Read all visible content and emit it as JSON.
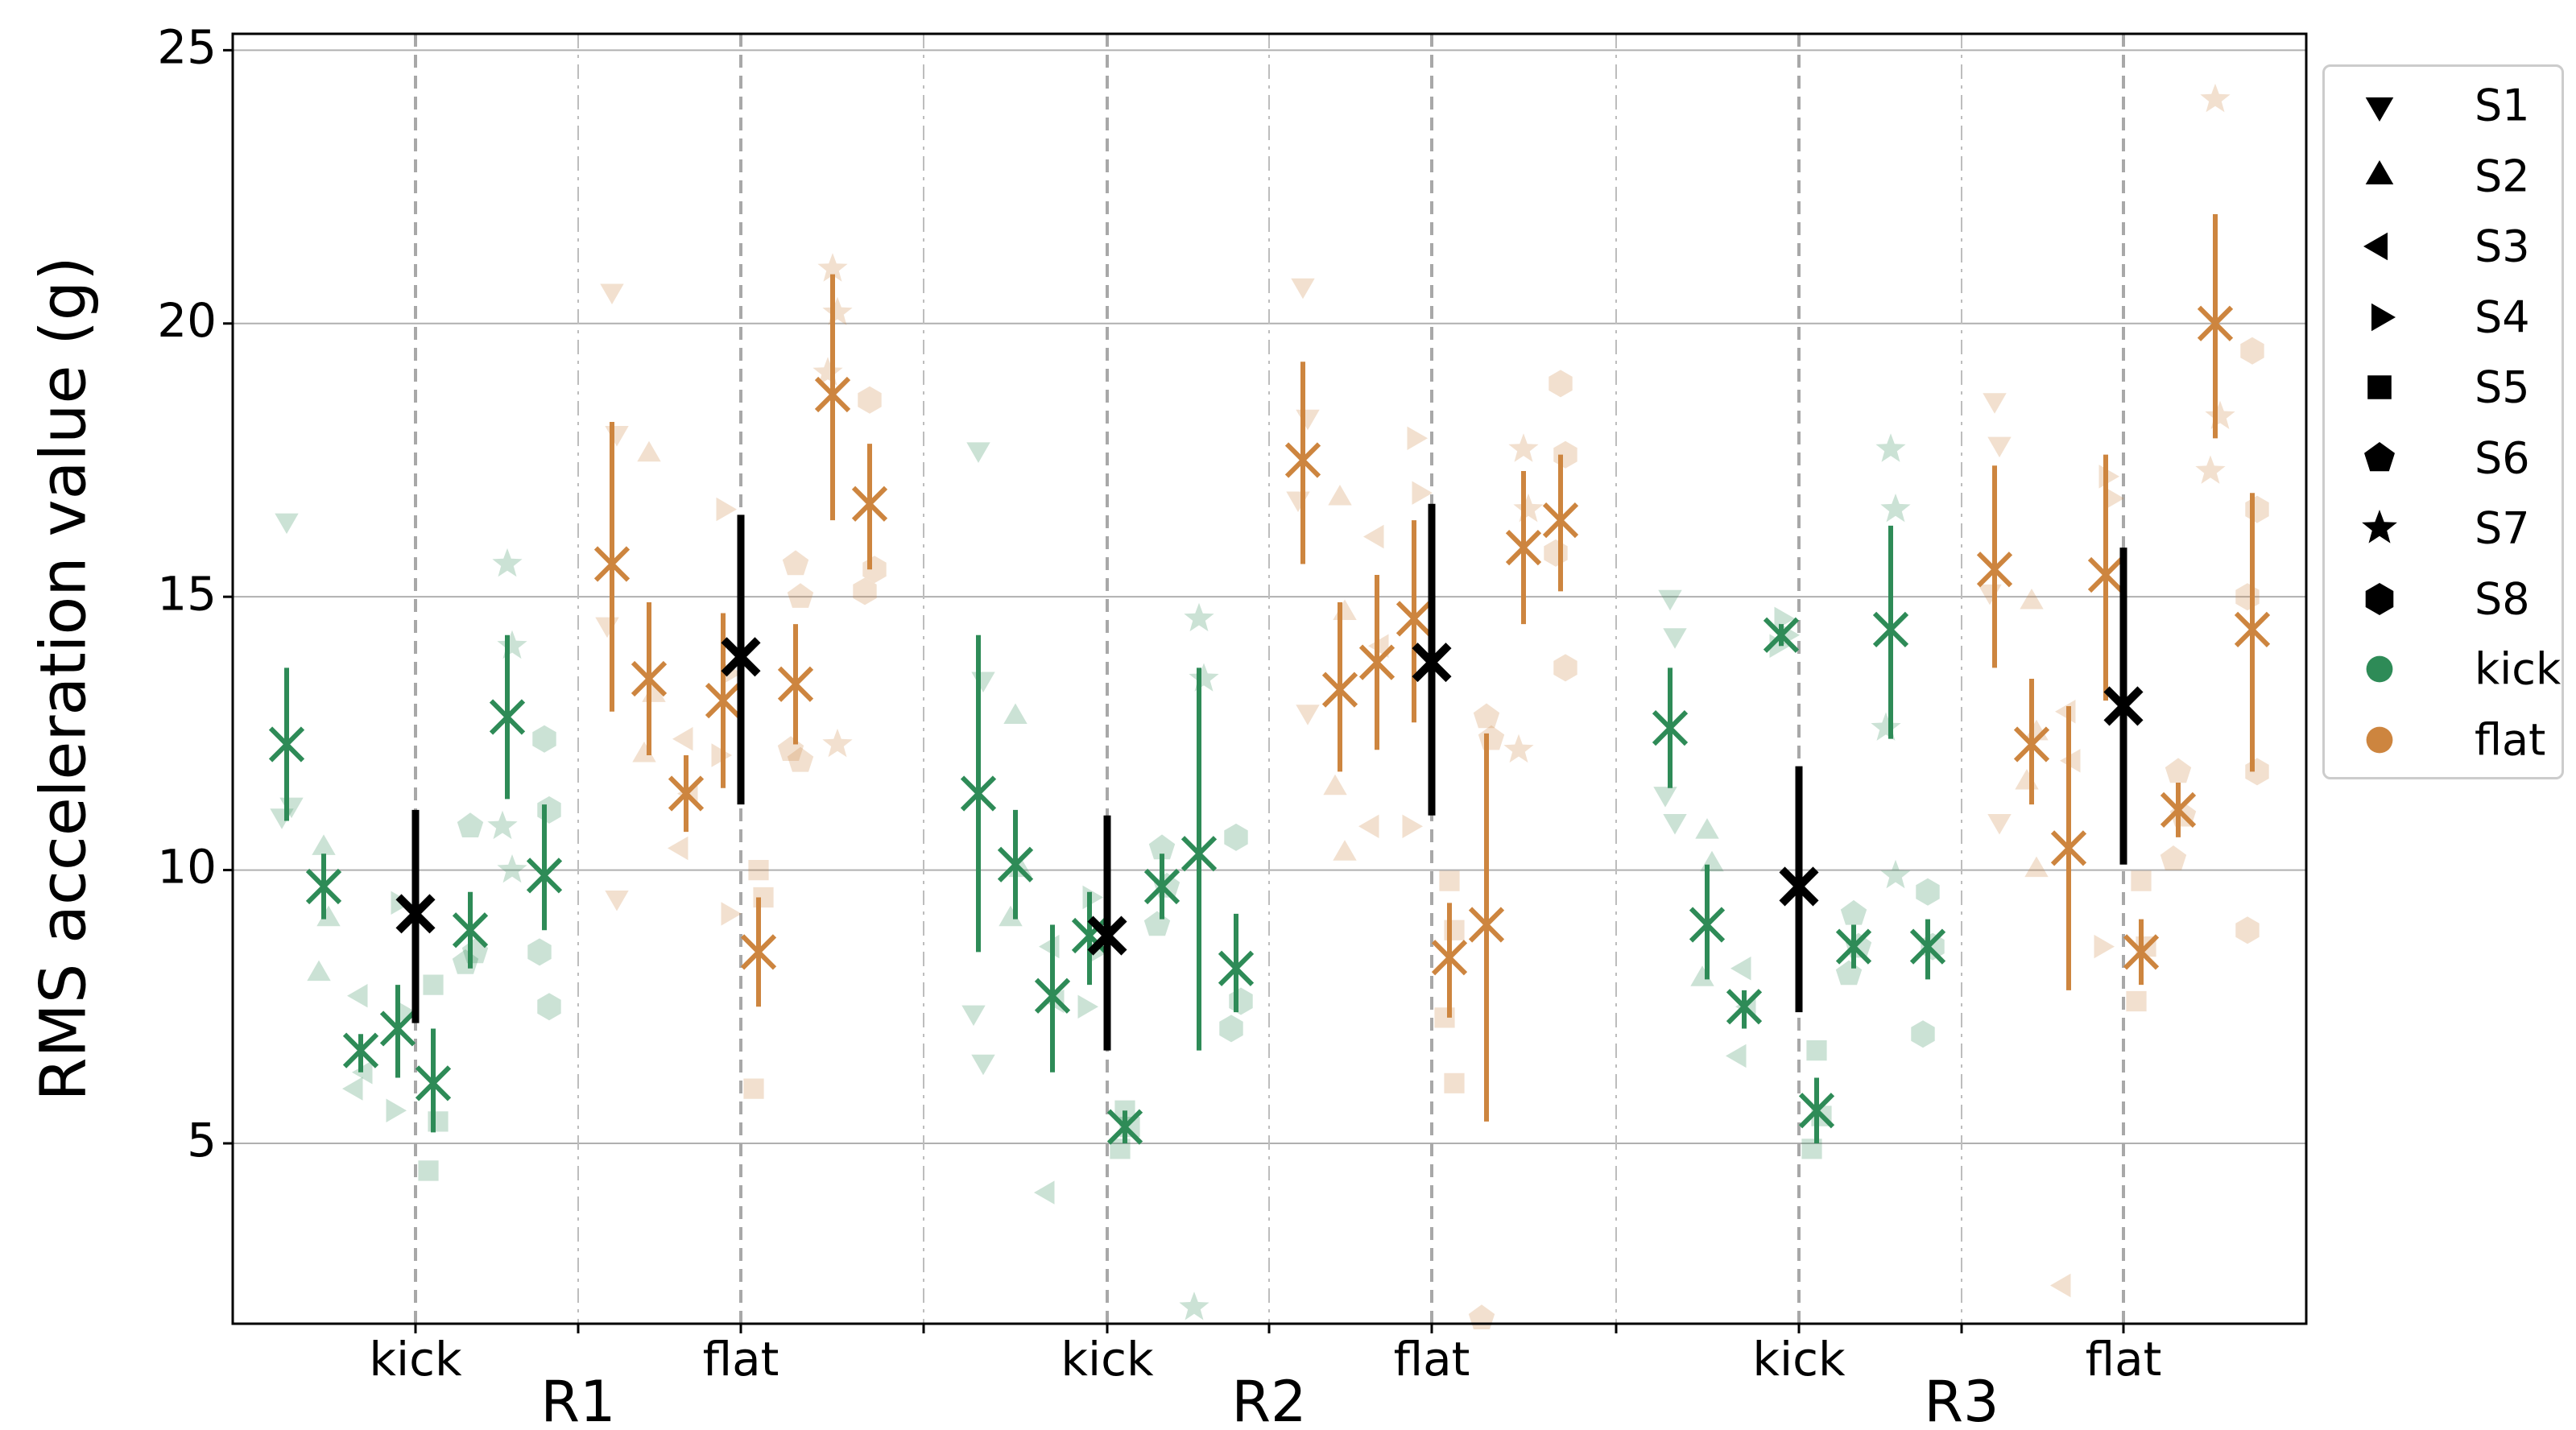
{
  "chart_data": {
    "type": "scatter",
    "title": "",
    "xlabel": "",
    "ylabel": "RMS acceleration value (g)",
    "ylim": [
      1.7,
      25.3
    ],
    "yticks": [
      5,
      10,
      15,
      20,
      25
    ],
    "grid": "horizontal",
    "legend_position": "right",
    "groups": [
      "R1",
      "R2",
      "R3"
    ],
    "conditions": [
      "kick",
      "flat"
    ],
    "colors": {
      "kick": "#2e8b57",
      "flat": "#cd853f",
      "overall": "#000000"
    },
    "subjects": [
      "S1",
      "S2",
      "S3",
      "S4",
      "S5",
      "S6",
      "S7",
      "S8"
    ],
    "markers": {
      "S1": "triangle-down",
      "S2": "triangle-up",
      "S3": "triangle-left",
      "S4": "triangle-right",
      "S5": "square",
      "S6": "pentagon",
      "S7": "star",
      "S8": "hexagon"
    },
    "series": [
      {
        "group": "R1",
        "condition": "kick",
        "overall": {
          "mean": 9.2,
          "low": 7.2,
          "high": 11.1
        },
        "subjects": [
          {
            "name": "S1",
            "mean": 12.3,
            "low": 10.9,
            "high": 13.7,
            "points": [
              16.4,
              11.2,
              11.0
            ]
          },
          {
            "name": "S2",
            "mean": 9.7,
            "low": 9.1,
            "high": 10.3,
            "points": [
              10.4,
              9.1,
              8.1
            ]
          },
          {
            "name": "S3",
            "mean": 6.7,
            "low": 6.3,
            "high": 7.0,
            "points": [
              7.7,
              6.3,
              6.0
            ]
          },
          {
            "name": "S4",
            "mean": 7.1,
            "low": 6.2,
            "high": 7.9,
            "points": [
              9.4,
              7.4,
              5.6
            ]
          },
          {
            "name": "S5",
            "mean": 6.1,
            "low": 5.2,
            "high": 7.1,
            "points": [
              7.9,
              5.4,
              4.5
            ]
          },
          {
            "name": "S6",
            "mean": 8.9,
            "low": 8.2,
            "high": 9.6,
            "points": [
              10.8,
              8.5,
              8.3
            ]
          },
          {
            "name": "S7",
            "mean": 12.8,
            "low": 11.3,
            "high": 14.3,
            "points": [
              15.6,
              14.1,
              10.8,
              10.0
            ]
          },
          {
            "name": "S8",
            "mean": 9.9,
            "low": 8.9,
            "high": 11.2,
            "points": [
              12.4,
              11.1,
              8.5,
              7.5
            ]
          }
        ]
      },
      {
        "group": "R1",
        "condition": "flat",
        "overall": {
          "mean": 13.9,
          "low": 11.2,
          "high": 16.5
        },
        "subjects": [
          {
            "name": "S1",
            "mean": 15.6,
            "low": 12.9,
            "high": 18.2,
            "points": [
              20.6,
              18.0,
              14.5,
              9.5
            ]
          },
          {
            "name": "S2",
            "mean": 13.5,
            "low": 12.1,
            "high": 14.9,
            "points": [
              17.6,
              13.2,
              12.1
            ]
          },
          {
            "name": "S3",
            "mean": 11.4,
            "low": 10.7,
            "high": 12.1,
            "points": [
              12.4,
              11.4,
              10.4
            ]
          },
          {
            "name": "S4",
            "mean": 13.1,
            "low": 11.5,
            "high": 14.7,
            "points": [
              16.6,
              13.6,
              12.1,
              9.2
            ]
          },
          {
            "name": "S5",
            "mean": 8.5,
            "low": 7.5,
            "high": 9.5,
            "points": [
              10.0,
              9.5,
              6.0
            ]
          },
          {
            "name": "S6",
            "mean": 13.4,
            "low": 12.3,
            "high": 14.5,
            "points": [
              15.6,
              15.0,
              12.2,
              12.0
            ]
          },
          {
            "name": "S7",
            "mean": 18.7,
            "low": 16.4,
            "high": 20.9,
            "points": [
              21.0,
              20.2,
              19.1,
              12.3
            ]
          },
          {
            "name": "S8",
            "mean": 16.7,
            "low": 15.5,
            "high": 17.8,
            "points": [
              18.6,
              15.5,
              15.1
            ]
          }
        ]
      },
      {
        "group": "R2",
        "condition": "kick",
        "overall": {
          "mean": 8.8,
          "low": 6.7,
          "high": 11.0
        },
        "subjects": [
          {
            "name": "S1",
            "mean": 11.4,
            "low": 8.5,
            "high": 14.3,
            "points": [
              17.7,
              13.5,
              7.4,
              6.5
            ]
          },
          {
            "name": "S2",
            "mean": 10.1,
            "low": 9.1,
            "high": 11.1,
            "points": [
              12.8,
              10.0,
              9.1
            ]
          },
          {
            "name": "S3",
            "mean": 7.7,
            "low": 6.3,
            "high": 9.0,
            "points": [
              8.6,
              7.6,
              4.1
            ]
          },
          {
            "name": "S4",
            "mean": 8.8,
            "low": 7.9,
            "high": 9.6,
            "points": [
              9.5,
              8.5,
              7.5
            ]
          },
          {
            "name": "S5",
            "mean": 5.3,
            "low": 5.0,
            "high": 5.6,
            "points": [
              5.6,
              5.3,
              4.9
            ]
          },
          {
            "name": "S6",
            "mean": 9.7,
            "low": 9.1,
            "high": 10.3,
            "points": [
              10.4,
              9.7,
              9.0
            ]
          },
          {
            "name": "S7",
            "mean": 10.3,
            "low": 6.7,
            "high": 13.7,
            "points": [
              14.6,
              13.5,
              2.0
            ]
          },
          {
            "name": "S8",
            "mean": 8.2,
            "low": 7.4,
            "high": 9.2,
            "points": [
              10.6,
              7.6,
              7.1
            ]
          }
        ]
      },
      {
        "group": "R2",
        "condition": "flat",
        "overall": {
          "mean": 13.8,
          "low": 11.0,
          "high": 16.7
        },
        "subjects": [
          {
            "name": "S1",
            "mean": 17.5,
            "low": 15.6,
            "high": 19.3,
            "points": [
              20.7,
              18.3,
              16.8,
              12.9
            ]
          },
          {
            "name": "S2",
            "mean": 13.3,
            "low": 11.8,
            "high": 14.9,
            "points": [
              16.8,
              14.7,
              11.5,
              10.3
            ]
          },
          {
            "name": "S3",
            "mean": 13.8,
            "low": 12.2,
            "high": 15.4,
            "points": [
              16.1,
              14.1,
              10.8
            ]
          },
          {
            "name": "S4",
            "mean": 14.6,
            "low": 12.7,
            "high": 16.4,
            "points": [
              17.9,
              16.9,
              10.8
            ]
          },
          {
            "name": "S5",
            "mean": 8.4,
            "low": 7.3,
            "high": 9.4,
            "points": [
              9.8,
              8.9,
              7.3,
              6.1
            ]
          },
          {
            "name": "S6",
            "mean": 9.0,
            "low": 5.4,
            "high": 12.5,
            "points": [
              12.8,
              12.4,
              1.8
            ]
          },
          {
            "name": "S7",
            "mean": 15.9,
            "low": 14.5,
            "high": 17.3,
            "points": [
              17.7,
              16.6,
              12.2
            ]
          },
          {
            "name": "S8",
            "mean": 16.4,
            "low": 15.1,
            "high": 17.6,
            "points": [
              18.9,
              17.6,
              15.8,
              13.7
            ]
          }
        ]
      },
      {
        "group": "R3",
        "condition": "kick",
        "overall": {
          "mean": 9.7,
          "low": 7.4,
          "high": 11.9
        },
        "subjects": [
          {
            "name": "S1",
            "mean": 12.6,
            "low": 11.5,
            "high": 13.7,
            "points": [
              15.0,
              14.3,
              11.4,
              10.9
            ]
          },
          {
            "name": "S2",
            "mean": 9.0,
            "low": 8.0,
            "high": 10.1,
            "points": [
              10.7,
              10.1,
              8.0
            ]
          },
          {
            "name": "S3",
            "mean": 7.5,
            "low": 7.1,
            "high": 7.8,
            "points": [
              8.2,
              7.5,
              6.6
            ]
          },
          {
            "name": "S4",
            "mean": 14.3,
            "low": 14.1,
            "high": 14.5,
            "points": [
              14.6,
              14.3,
              14.1
            ]
          },
          {
            "name": "S5",
            "mean": 5.6,
            "low": 5.0,
            "high": 6.2,
            "points": [
              6.7,
              5.5,
              4.9
            ]
          },
          {
            "name": "S6",
            "mean": 8.6,
            "low": 8.2,
            "high": 9.0,
            "points": [
              9.2,
              8.6,
              8.1
            ]
          },
          {
            "name": "S7",
            "mean": 14.4,
            "low": 12.4,
            "high": 16.3,
            "points": [
              17.7,
              16.6,
              12.6,
              9.9
            ]
          },
          {
            "name": "S8",
            "mean": 8.6,
            "low": 8.0,
            "high": 9.1,
            "points": [
              9.6,
              8.6,
              7.0
            ]
          }
        ]
      },
      {
        "group": "R3",
        "condition": "flat",
        "overall": {
          "mean": 13.0,
          "low": 10.1,
          "high": 15.9
        },
        "subjects": [
          {
            "name": "S1",
            "mean": 15.5,
            "low": 13.7,
            "high": 17.4,
            "points": [
              18.6,
              17.8,
              15.1,
              10.9
            ]
          },
          {
            "name": "S2",
            "mean": 12.3,
            "low": 11.2,
            "high": 13.5,
            "points": [
              14.9,
              12.5,
              11.6,
              10.0
            ]
          },
          {
            "name": "S3",
            "mean": 10.4,
            "low": 7.8,
            "high": 13.0,
            "points": [
              12.9,
              12.0,
              2.4
            ]
          },
          {
            "name": "S4",
            "mean": 15.4,
            "low": 13.1,
            "high": 17.6,
            "points": [
              17.2,
              16.8,
              8.6
            ]
          },
          {
            "name": "S5",
            "mean": 8.5,
            "low": 7.9,
            "high": 9.1,
            "points": [
              9.8,
              8.6,
              7.6
            ]
          },
          {
            "name": "S6",
            "mean": 11.1,
            "low": 10.6,
            "high": 11.6,
            "points": [
              11.8,
              11.0,
              10.2
            ]
          },
          {
            "name": "S7",
            "mean": 20.0,
            "low": 17.9,
            "high": 22.0,
            "points": [
              24.1,
              18.3,
              17.3
            ]
          },
          {
            "name": "S8",
            "mean": 14.4,
            "low": 11.8,
            "high": 16.9,
            "points": [
              19.5,
              16.6,
              15.0,
              11.8,
              8.9
            ]
          }
        ]
      }
    ]
  },
  "legend": {
    "items": [
      {
        "label": "S1",
        "symbol": "triangle-down",
        "color": "#000000"
      },
      {
        "label": "S2",
        "symbol": "triangle-up",
        "color": "#000000"
      },
      {
        "label": "S3",
        "symbol": "triangle-left",
        "color": "#000000"
      },
      {
        "label": "S4",
        "symbol": "triangle-right",
        "color": "#000000"
      },
      {
        "label": "S5",
        "symbol": "square",
        "color": "#000000"
      },
      {
        "label": "S6",
        "symbol": "pentagon",
        "color": "#000000"
      },
      {
        "label": "S7",
        "symbol": "star",
        "color": "#000000"
      },
      {
        "label": "S8",
        "symbol": "hexagon",
        "color": "#000000"
      },
      {
        "label": "kick",
        "symbol": "circle",
        "color": "#2e8b57"
      },
      {
        "label": "flat",
        "symbol": "circle",
        "color": "#cd853f"
      }
    ]
  }
}
